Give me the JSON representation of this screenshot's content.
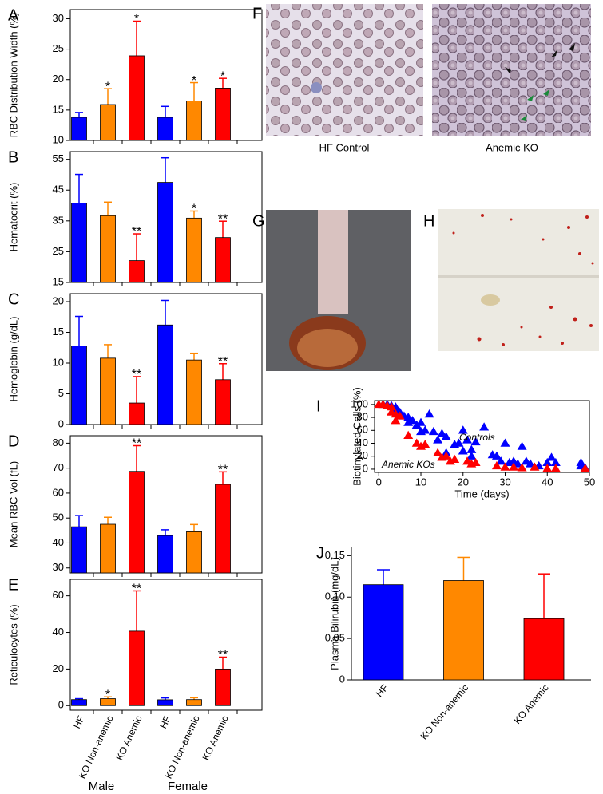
{
  "chart_data": [
    {
      "type": "bar",
      "panel": "A",
      "ylabel": "RBC Distribution Width (%)",
      "values": [
        13.8,
        15.9,
        23.9,
        13.8,
        16.5,
        18.6
      ],
      "errors": [
        0.8,
        2.6,
        5.7,
        1.8,
        3.0,
        1.6
      ],
      "colors": [
        "#0000ff",
        "#ff8800",
        "#ff0000",
        "#0000ff",
        "#ff8800",
        "#ff0000"
      ],
      "annotations": [
        null,
        "*",
        "*",
        null,
        "*",
        "*"
      ],
      "ylim": [
        10,
        31.5
      ],
      "yticks": [
        10,
        15,
        20,
        25,
        30
      ]
    },
    {
      "type": "bar",
      "panel": "B",
      "ylabel": "Hematocrit (%)",
      "values": [
        40.8,
        36.7,
        22.1,
        47.5,
        35.9,
        29.6
      ],
      "errors": [
        9.3,
        4.4,
        8.7,
        8.0,
        2.3,
        5.3
      ],
      "colors": [
        "#0000ff",
        "#ff8800",
        "#ff0000",
        "#0000ff",
        "#ff8800",
        "#ff0000"
      ],
      "annotations": [
        null,
        null,
        "**",
        null,
        "*",
        "**"
      ],
      "ylim": [
        15,
        57.5
      ],
      "yticks": [
        15,
        25,
        35,
        45,
        55
      ]
    },
    {
      "type": "bar",
      "panel": "C",
      "ylabel": "Hemoglobin (g/dL)",
      "values": [
        12.8,
        10.8,
        3.5,
        16.2,
        10.5,
        7.3
      ],
      "errors": [
        4.8,
        2.2,
        4.3,
        4.0,
        1.1,
        2.6
      ],
      "colors": [
        "#0000ff",
        "#ff8800",
        "#ff0000",
        "#0000ff",
        "#ff8800",
        "#ff0000"
      ],
      "annotations": [
        null,
        null,
        "**",
        null,
        null,
        "**"
      ],
      "ylim": [
        0,
        21.3
      ],
      "yticks": [
        0,
        5,
        10,
        15,
        20
      ]
    },
    {
      "type": "bar",
      "panel": "D",
      "ylabel": "Mean RBC Vol (fL)",
      "values": [
        46.5,
        47.5,
        68.7,
        43.0,
        44.5,
        63.5
      ],
      "errors": [
        4.5,
        2.8,
        10.3,
        2.3,
        2.9,
        5.0
      ],
      "colors": [
        "#0000ff",
        "#ff8800",
        "#ff0000",
        "#0000ff",
        "#ff8800",
        "#ff0000"
      ],
      "annotations": [
        null,
        null,
        "**",
        null,
        null,
        "**"
      ],
      "ylim": [
        28,
        83
      ],
      "yticks": [
        30,
        40,
        50,
        60,
        70,
        80
      ]
    },
    {
      "type": "bar",
      "panel": "E",
      "ylabel": "Reticulocytes (%)",
      "categories": [
        "HF",
        "KO Non-anemic",
        "KO Anemic",
        "HF",
        "KO Non-anemic",
        "KO Anemic"
      ],
      "groups": [
        "Male",
        "Female"
      ],
      "values": [
        3.3,
        3.8,
        40.7,
        3.2,
        3.3,
        20.0
      ],
      "errors": [
        0.5,
        1.0,
        22.0,
        1.0,
        1.0,
        6.5
      ],
      "colors": [
        "#0000ff",
        "#ff8800",
        "#ff0000",
        "#0000ff",
        "#ff8800",
        "#ff0000"
      ],
      "annotations": [
        null,
        "*",
        "**",
        null,
        null,
        "**"
      ],
      "ylim": [
        -2.5,
        69
      ],
      "yticks": [
        0,
        20,
        40,
        60
      ]
    },
    {
      "type": "scatter",
      "panel": "I",
      "ylabel": "Biotinylated Cells (%)",
      "xlabel": "Time (days)",
      "series": [
        {
          "name": "Controls",
          "color": "#0000ff",
          "x": [
            1,
            2,
            3,
            4,
            4,
            5,
            6,
            7,
            7,
            8,
            9,
            10,
            10,
            11,
            12,
            13,
            14,
            15,
            16,
            16,
            18,
            19,
            20,
            20,
            21,
            22,
            22,
            23,
            25,
            27,
            28,
            29,
            30,
            31,
            32,
            33,
            34,
            35,
            36,
            38,
            40,
            41,
            42,
            48,
            48,
            49
          ],
          "values": [
            100,
            100,
            98,
            96,
            90,
            88,
            82,
            80,
            72,
            75,
            68,
            58,
            72,
            60,
            85,
            58,
            45,
            55,
            50,
            25,
            38,
            40,
            28,
            60,
            45,
            30,
            20,
            42,
            65,
            22,
            20,
            12,
            40,
            10,
            12,
            8,
            35,
            12,
            8,
            5,
            10,
            18,
            10,
            10,
            5,
            2
          ]
        },
        {
          "name": "Anemic KOs",
          "color": "#ff0000",
          "x": [
            0,
            1,
            2,
            3,
            3,
            4,
            4,
            5,
            7,
            9,
            10,
            11,
            14,
            15,
            16,
            17,
            18,
            21,
            22,
            23,
            28,
            30,
            32,
            34,
            37,
            40,
            42,
            49
          ],
          "values": [
            100,
            100,
            98,
            96,
            88,
            85,
            75,
            82,
            52,
            40,
            35,
            38,
            25,
            18,
            20,
            12,
            15,
            12,
            8,
            10,
            5,
            3,
            3,
            2,
            3,
            1,
            1,
            1
          ]
        }
      ],
      "xlim": [
        -1,
        50
      ],
      "xticks": [
        0,
        10,
        20,
        30,
        40,
        50
      ],
      "ylim": [
        -5,
        106
      ],
      "yticks": [
        0,
        20,
        40,
        60,
        80,
        100
      ]
    },
    {
      "type": "bar",
      "panel": "J",
      "ylabel": "Plasma Bilirubin (mg/dL)",
      "categories": [
        "HF",
        "KO Non-anemic",
        "KO Anemic"
      ],
      "values": [
        0.115,
        0.12,
        0.074
      ],
      "errors": [
        0.018,
        0.028,
        0.054
      ],
      "colors": [
        "#0000ff",
        "#ff8800",
        "#ff0000"
      ],
      "ylim": [
        0,
        0.16
      ],
      "yticks": [
        0,
        0.05,
        {
          "value": 0.1,
          "label": "0.10"
        },
        0.15
      ]
    }
  ],
  "photos": [
    {
      "panel": "F",
      "captions": [
        "HF Control",
        "Anemic KO"
      ]
    },
    {
      "panel": "G"
    },
    {
      "panel": "H"
    }
  ]
}
